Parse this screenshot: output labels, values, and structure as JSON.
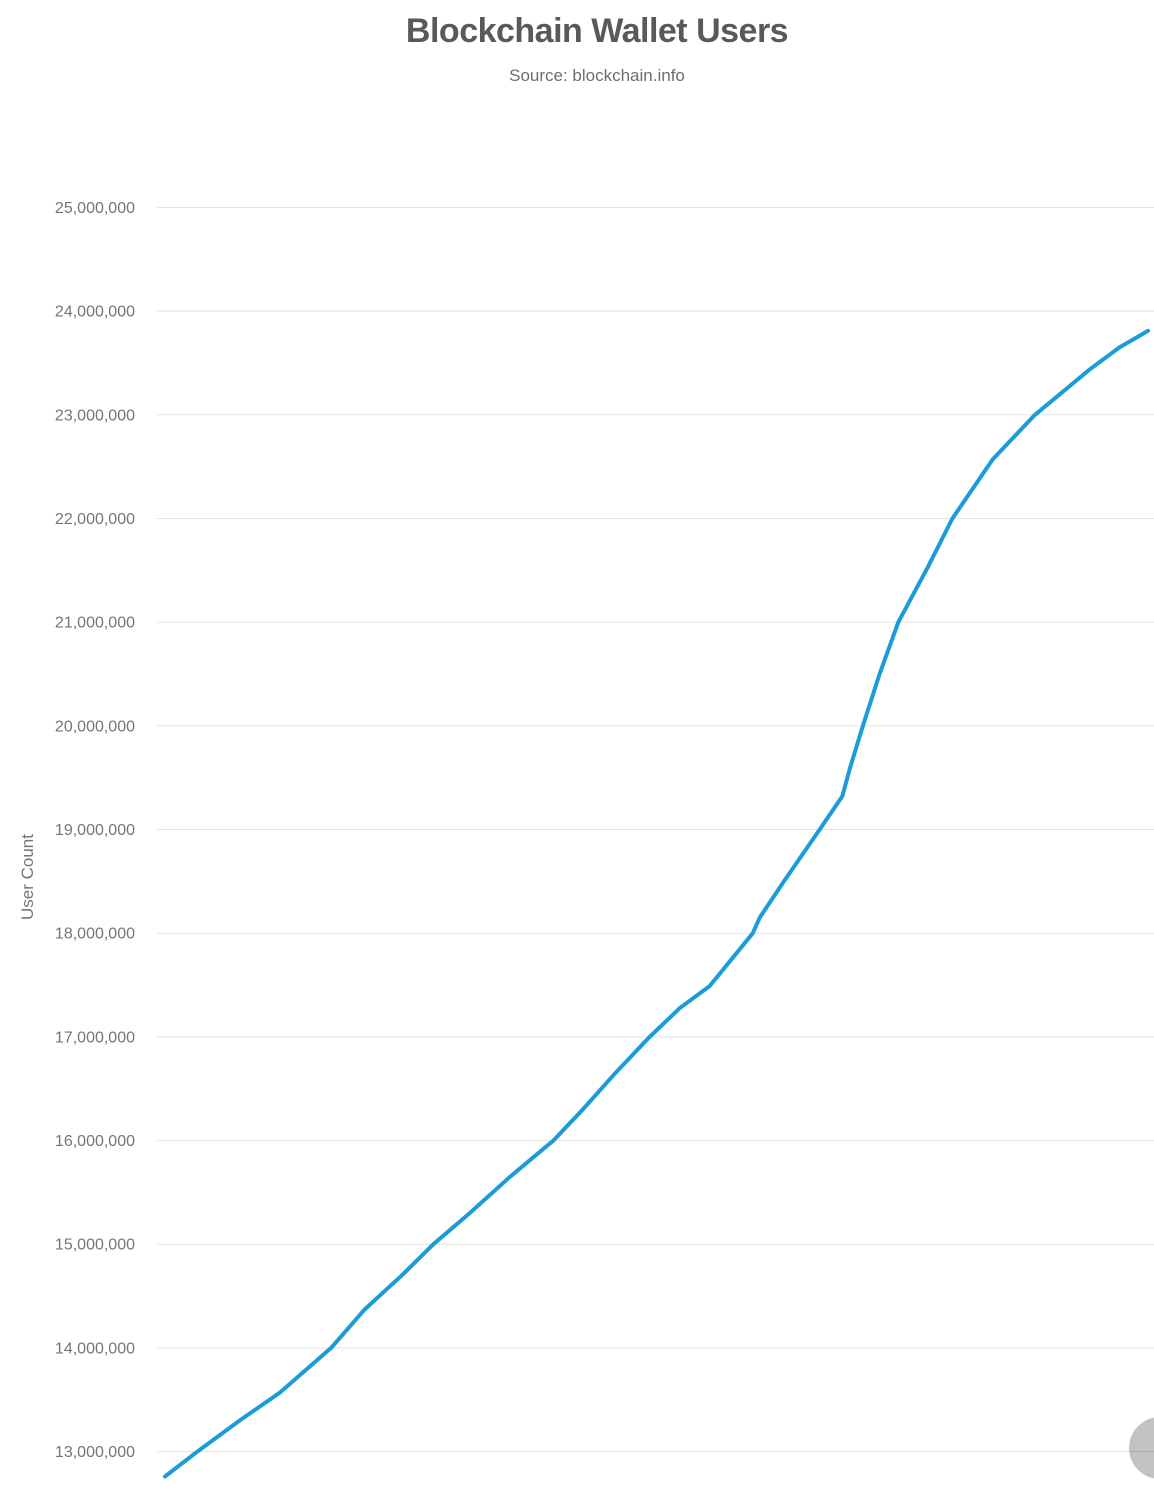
{
  "page": {
    "title": "Blockchain Wallet Users",
    "subtitle": "Source: blockchain.info"
  },
  "icons": {
    "floating_button": "scroll-circle-button"
  },
  "colors": {
    "line": "#1b9cd8",
    "grid": "#e2e2e2",
    "tick_text": "#757575",
    "title_text": "#58595b",
    "subtitle_text": "#6e6e6e"
  },
  "chart_data": {
    "type": "line",
    "title": "Blockchain Wallet Users",
    "subtitle": "Source: blockchain.info",
    "xlabel": "",
    "ylabel": "User Count",
    "x_axis_labels_visible": false,
    "grid": true,
    "legend": "none",
    "ylim": [
      12600000,
      25400000
    ],
    "y_ticks": [
      {
        "value": 25000000,
        "label": "25,000,000"
      },
      {
        "value": 24000000,
        "label": "24,000,000"
      },
      {
        "value": 23000000,
        "label": "23,000,000"
      },
      {
        "value": 22000000,
        "label": "22,000,000"
      },
      {
        "value": 21000000,
        "label": "21,000,000"
      },
      {
        "value": 20000000,
        "label": "20,000,000"
      },
      {
        "value": 19000000,
        "label": "19,000,000"
      },
      {
        "value": 18000000,
        "label": "18,000,000"
      },
      {
        "value": 17000000,
        "label": "17,000,000"
      },
      {
        "value": 16000000,
        "label": "16,000,000"
      },
      {
        "value": 15000000,
        "label": "15,000,000"
      },
      {
        "value": 14000000,
        "label": "14,000,000"
      },
      {
        "value": 13000000,
        "label": "13,000,000"
      }
    ],
    "series": [
      {
        "name": "User Count",
        "color": "#1b9cd8",
        "points": [
          {
            "x": 0.0,
            "y": 12760000
          },
          {
            "x": 0.033,
            "y": 13000000
          },
          {
            "x": 0.076,
            "y": 13300000
          },
          {
            "x": 0.117,
            "y": 13570000
          },
          {
            "x": 0.169,
            "y": 14000000
          },
          {
            "x": 0.203,
            "y": 14370000
          },
          {
            "x": 0.241,
            "y": 14700000
          },
          {
            "x": 0.273,
            "y": 15000000
          },
          {
            "x": 0.31,
            "y": 15300000
          },
          {
            "x": 0.351,
            "y": 15650000
          },
          {
            "x": 0.395,
            "y": 16000000
          },
          {
            "x": 0.425,
            "y": 16300000
          },
          {
            "x": 0.458,
            "y": 16650000
          },
          {
            "x": 0.493,
            "y": 17000000
          },
          {
            "x": 0.524,
            "y": 17280000
          },
          {
            "x": 0.554,
            "y": 17490000
          },
          {
            "x": 0.598,
            "y": 18000000
          },
          {
            "x": 0.605,
            "y": 18150000
          },
          {
            "x": 0.631,
            "y": 18520000
          },
          {
            "x": 0.666,
            "y": 19000000
          },
          {
            "x": 0.689,
            "y": 19320000
          },
          {
            "x": 0.697,
            "y": 19600000
          },
          {
            "x": 0.71,
            "y": 20000000
          },
          {
            "x": 0.727,
            "y": 20500000
          },
          {
            "x": 0.746,
            "y": 21000000
          },
          {
            "x": 0.776,
            "y": 21530000
          },
          {
            "x": 0.801,
            "y": 22000000
          },
          {
            "x": 0.842,
            "y": 22570000
          },
          {
            "x": 0.885,
            "y": 23000000
          },
          {
            "x": 0.941,
            "y": 23440000
          },
          {
            "x": 0.971,
            "y": 23650000
          },
          {
            "x": 1.0,
            "y": 23810000
          }
        ]
      }
    ]
  }
}
